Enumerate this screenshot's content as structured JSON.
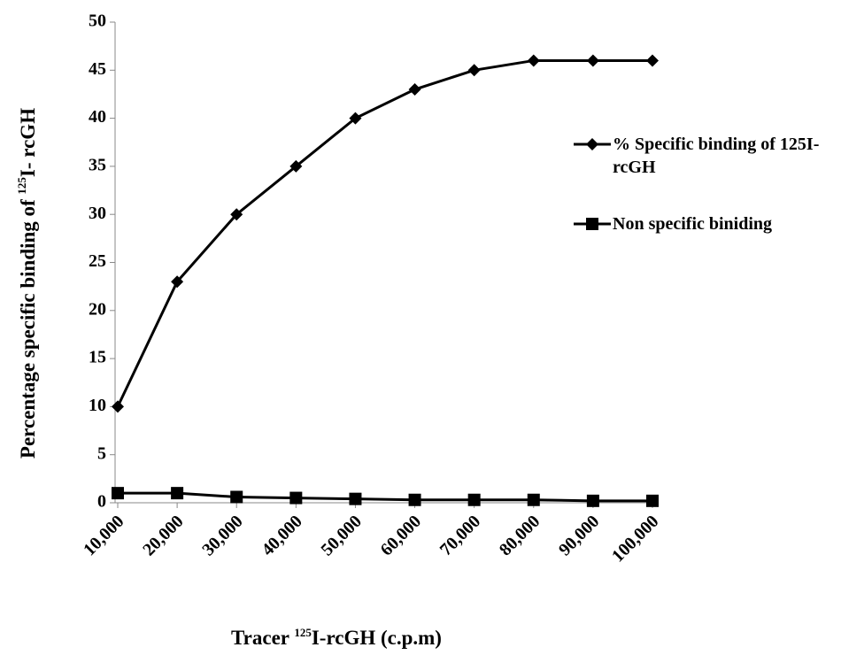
{
  "chart_data": {
    "type": "line",
    "y_label_parts": [
      "Percentage specific binding of ",
      "125",
      "I- rcGH"
    ],
    "x_label_parts": [
      "Tracer ",
      "125",
      "I-rcGH (c.p.m)"
    ],
    "categories": [
      "10,000",
      "20,000",
      "30,000",
      "40,000",
      "50,000",
      "60,000",
      "70,000",
      "80,000",
      "90,000",
      "100,000"
    ],
    "series": [
      {
        "name": "% Specific binding of 125I-rcGH",
        "color": "#000000",
        "marker": "diamond",
        "values": [
          10,
          23,
          30,
          35,
          40,
          43,
          45,
          46,
          46,
          46
        ]
      },
      {
        "name": "Non specific biniding",
        "color": "#000000",
        "marker": "square",
        "values": [
          1,
          1,
          0.6,
          0.5,
          0.4,
          0.3,
          0.3,
          0.3,
          0.2,
          0.2
        ]
      }
    ],
    "ylim": [
      0,
      50
    ],
    "yticks": [
      0,
      5,
      10,
      15,
      20,
      25,
      30,
      35,
      40,
      45,
      50
    ],
    "legend": "right"
  }
}
